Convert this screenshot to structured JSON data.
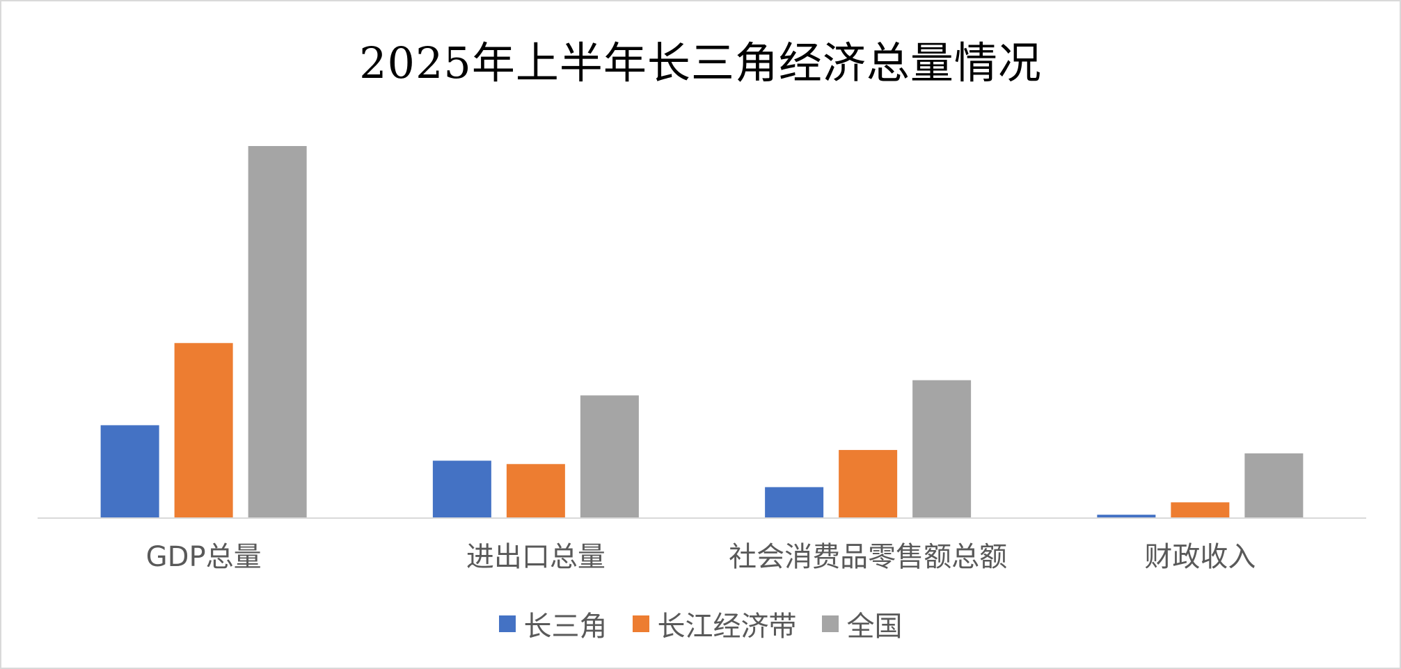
{
  "chart_data": {
    "type": "bar",
    "title": "2025年上半年长三角经济总量情况",
    "xlabel": "",
    "ylabel": "",
    "categories": [
      "GDP总量",
      "进出口总量",
      "社会消费品零售额总额",
      "财政收入"
    ],
    "series": [
      {
        "name": "长三角",
        "color": "#4472c4",
        "values": [
          16.5,
          10.2,
          5.5,
          0.6
        ]
      },
      {
        "name": "长江经济带",
        "color": "#ed7d31",
        "values": [
          31.1,
          9.6,
          12.1,
          2.8
        ]
      },
      {
        "name": "全国",
        "color": "#a5a5a5",
        "values": [
          66.1,
          21.8,
          24.5,
          11.5
        ]
      }
    ],
    "ylim": [
      0,
      66.1
    ],
    "grid": false,
    "legend": "bottom"
  }
}
